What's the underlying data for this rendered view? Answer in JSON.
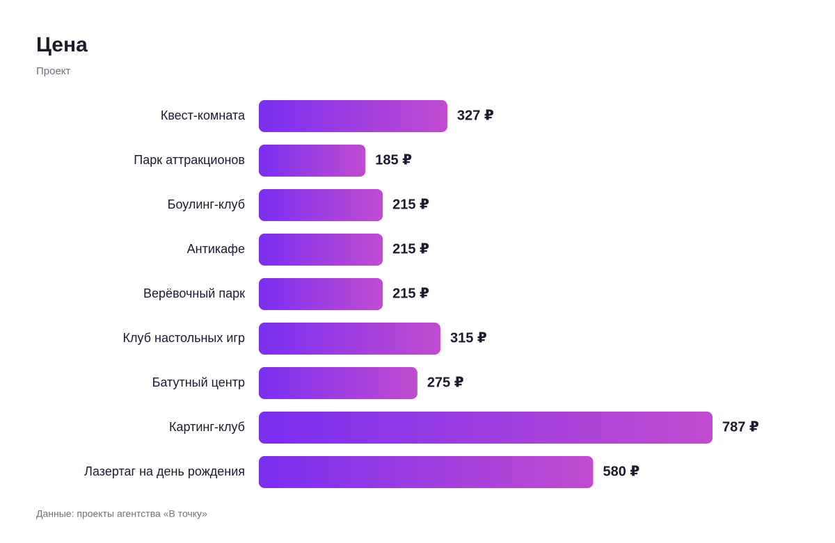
{
  "chart_data": {
    "type": "bar",
    "orientation": "horizontal",
    "title": "Цена",
    "subtitle": "Проект",
    "categories": [
      "Квест-комната",
      "Парк аттракционов",
      "Боулинг-клуб",
      "Антикафе",
      "Верёвочный парк",
      "Клуб настольных игр",
      "Батутный центр",
      "Картинг-клуб",
      "Лазертаг на день рождения"
    ],
    "values": [
      327,
      185,
      215,
      215,
      215,
      315,
      275,
      787,
      580
    ],
    "value_labels": [
      "327 ₽",
      "185 ₽",
      "215 ₽",
      "215 ₽",
      "215 ₽",
      "315 ₽",
      "275 ₽",
      "787 ₽",
      "580 ₽"
    ],
    "color": [
      "#7a2ff0",
      "#c04ccf"
    ],
    "note": "Данные: проекты агентства «В точку»"
  }
}
